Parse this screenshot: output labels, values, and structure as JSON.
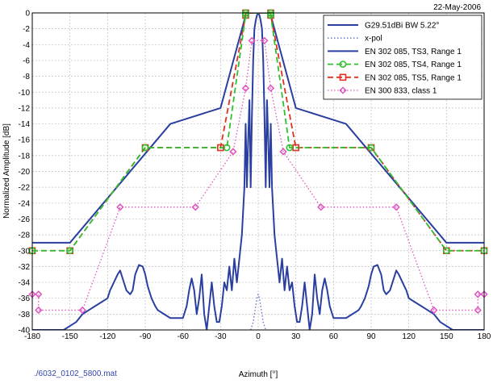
{
  "date_label": "22-May-2006",
  "file_label": "./6032_0102_5800.mat",
  "colors": {
    "copol": "#2a3fa0",
    "xpol": "#5a6fd0",
    "ts3": "#2a3fa0",
    "ts4": "#2ec02e",
    "ts5": "#e03020",
    "class1": "#e055c0",
    "grid": "#bdbdbd"
  },
  "chart_data": {
    "type": "line",
    "xlabel": "Azimuth [°]",
    "ylabel": "Normalized Amplitude [dB]",
    "xlim": [
      -180,
      180
    ],
    "ylim": [
      -40,
      0
    ],
    "xticks": [
      -180,
      -150,
      -120,
      -90,
      -60,
      -30,
      0,
      30,
      60,
      90,
      120,
      150,
      180
    ],
    "yticks": [
      0,
      -2,
      -4,
      -6,
      -8,
      -10,
      -12,
      -14,
      -16,
      -18,
      -20,
      -22,
      -24,
      -26,
      -28,
      -30,
      -32,
      -34,
      -36,
      -38,
      -40
    ],
    "grid": true,
    "legend_position": "top-right",
    "series": [
      {
        "name": "G29.51dBi BW 5.22°",
        "key": "copol",
        "style": "solid",
        "marker": "none",
        "x": [
          -180,
          -175,
          -170,
          -165,
          -160,
          -155,
          -150,
          -145,
          -140,
          -135,
          -130,
          -125,
          -120,
          -118,
          -115,
          -112,
          -110,
          -108,
          -105,
          -102,
          -100,
          -98,
          -95,
          -92,
          -90,
          -88,
          -85,
          -82,
          -80,
          -75,
          -70,
          -65,
          -60,
          -57,
          -55,
          -53,
          -51,
          -49,
          -47,
          -45,
          -43,
          -41,
          -39,
          -37,
          -35,
          -33,
          -31,
          -29,
          -27,
          -25,
          -23,
          -21,
          -19,
          -17,
          -15,
          -13,
          -11,
          -10,
          -9,
          -8,
          -7,
          -6,
          -5,
          -4,
          -3,
          -2,
          -1,
          0,
          1,
          2,
          3,
          4,
          5,
          6,
          7,
          8,
          9,
          10,
          11,
          13,
          15,
          17,
          19,
          21,
          23,
          25,
          27,
          29,
          31,
          33,
          35,
          37,
          39,
          41,
          43,
          45,
          47,
          49,
          51,
          53,
          55,
          57,
          60,
          65,
          70,
          75,
          80,
          82,
          85,
          88,
          90,
          92,
          95,
          98,
          100,
          102,
          105,
          108,
          110,
          112,
          115,
          118,
          120,
          125,
          130,
          135,
          140,
          145,
          150,
          155,
          160,
          165,
          170,
          175,
          180
        ],
        "y": [
          -40,
          -40,
          -40,
          -40,
          -40,
          -40,
          -39.5,
          -39,
          -38,
          -37.5,
          -37,
          -36.5,
          -36,
          -35,
          -34,
          -33,
          -32.5,
          -33.5,
          -35,
          -35.5,
          -35,
          -33,
          -31.8,
          -32,
          -33,
          -34.5,
          -36,
          -37,
          -37.5,
          -38,
          -38.5,
          -38.5,
          -38.5,
          -37,
          -35,
          -33.5,
          -35,
          -38,
          -36,
          -33,
          -38,
          -40,
          -37,
          -34,
          -37,
          -39,
          -39,
          -37,
          -34,
          -35,
          -32,
          -35,
          -31,
          -34,
          -31,
          -28,
          -22,
          -14,
          -22,
          -16,
          -11,
          -22,
          -13,
          -6,
          -2,
          -1,
          -0.3,
          0,
          -0.3,
          -1,
          -2,
          -6,
          -13,
          -22,
          -11,
          -16,
          -22,
          -14,
          -22,
          -28,
          -31,
          -34,
          -31,
          -35,
          -32,
          -35,
          -34,
          -37,
          -39,
          -39,
          -37,
          -34,
          -37,
          -40,
          -38,
          -33,
          -36,
          -38,
          -35,
          -33.5,
          -35,
          -37,
          -38.5,
          -38.5,
          -38.5,
          -38,
          -37.5,
          -37,
          -36,
          -34.5,
          -33,
          -32,
          -31.8,
          -33,
          -35,
          -35.5,
          -35,
          -33.5,
          -32.5,
          -33,
          -34,
          -35,
          -36,
          -36.5,
          -37,
          -37.5,
          -38,
          -39,
          -39.5,
          -40,
          -40,
          -40,
          -40,
          -40,
          -40
        ]
      },
      {
        "name": "x-pol",
        "key": "xpol",
        "style": "dotted",
        "marker": "none",
        "x": [
          -6,
          -4,
          -2,
          -1,
          0,
          1,
          2,
          4,
          6
        ],
        "y": [
          -40,
          -39,
          -37,
          -36,
          -35.5,
          -36,
          -37,
          -39,
          -40
        ]
      },
      {
        "name": "EN 302 085, TS3, Range 1",
        "key": "ts3",
        "style": "solid",
        "marker": "none",
        "x": [
          -180,
          -150,
          -70,
          -30,
          -10,
          -10,
          10,
          10,
          30,
          70,
          150,
          180
        ],
        "y": [
          -29,
          -29,
          -14,
          -12,
          -0.3,
          0,
          0,
          -0.3,
          -12,
          -14,
          -29,
          -29
        ]
      },
      {
        "name": "EN 302 085, TS4, Range 1",
        "key": "ts4",
        "style": "dashed",
        "marker": "circle",
        "x": [
          -180,
          -150,
          -90,
          -25,
          -10,
          -10,
          10,
          10,
          25,
          90,
          150,
          180
        ],
        "y": [
          -30,
          -30,
          -17,
          -17,
          -0.3,
          0,
          0,
          -0.3,
          -17,
          -17,
          -30,
          -30
        ]
      },
      {
        "name": "EN 302 085, TS5, Range 1",
        "key": "ts5",
        "style": "dashed",
        "marker": "square",
        "x": [
          -180,
          -150,
          -90,
          -30,
          -10,
          -10,
          10,
          10,
          30,
          90,
          150,
          180
        ],
        "y": [
          -30,
          -30,
          -17,
          -17,
          -0.3,
          0,
          0,
          -0.3,
          -17,
          -17,
          -30,
          -30
        ]
      },
      {
        "name": "EN 300 833, class 1",
        "key": "class1",
        "style": "dotted",
        "marker": "diamond",
        "x": [
          -180,
          -175,
          -175,
          -140,
          -110,
          -50,
          -20,
          -10,
          -5,
          5,
          10,
          20,
          50,
          110,
          140,
          175,
          175,
          180
        ],
        "y": [
          -35.5,
          -35.5,
          -37.5,
          -37.5,
          -24.5,
          -24.5,
          -17.5,
          -9.5,
          -3.5,
          -3.5,
          -9.5,
          -17.5,
          -24.5,
          -24.5,
          -37.5,
          -37.5,
          -35.5,
          -35.5
        ]
      }
    ]
  }
}
